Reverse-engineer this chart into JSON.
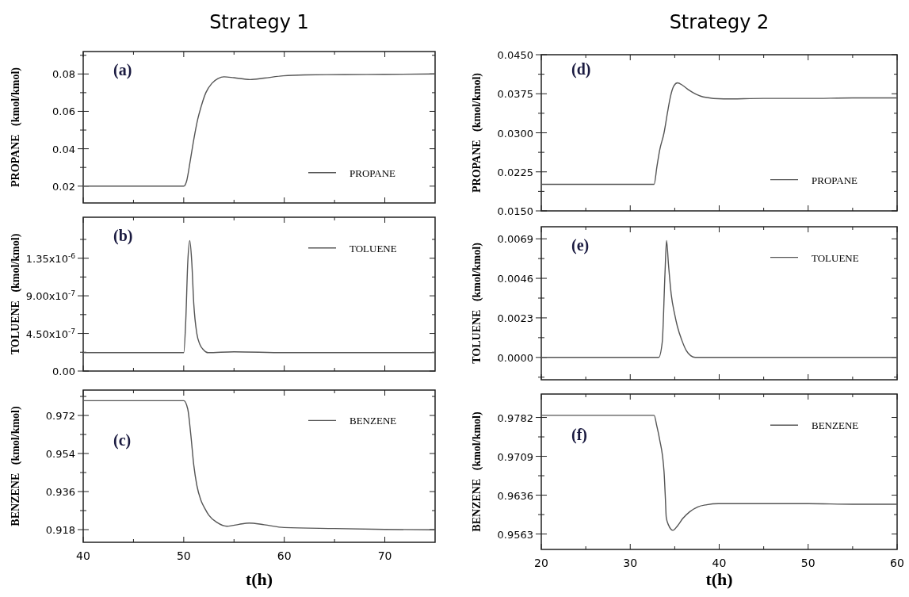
{
  "chart_data": [
    {
      "type": "line",
      "title": "Strategy 1",
      "ylabel": "PROPANE   (kmol/kmol)",
      "annotations": [
        "(a)"
      ],
      "legend": "bottom right",
      "tick_labels": "y",
      "xlim": [
        40,
        75
      ],
      "xticks": [
        40,
        {
          "value": 45,
          "label": null
        },
        50,
        {
          "value": 55,
          "label": null
        },
        60,
        {
          "value": 65,
          "label": null
        },
        70
      ],
      "ylim": [
        0.011,
        0.092
      ],
      "yticks": [
        {
          "value": 0.02,
          "label": "0.02"
        },
        {
          "value": 0.03,
          "label": null
        },
        {
          "value": 0.04,
          "label": "0.04"
        },
        {
          "value": 0.05,
          "label": null
        },
        {
          "value": 0.06,
          "label": "0.06"
        },
        {
          "value": 0.07,
          "label": null
        },
        {
          "value": 0.08,
          "label": "0.08"
        },
        {
          "value": 0.09,
          "label": null
        }
      ],
      "series": [
        {
          "name": "PROPANE",
          "color": "#555555",
          "x": [
            40,
            45,
            50,
            50.3,
            50.6,
            51,
            51.4,
            51.7,
            52.2,
            52.8,
            53.4,
            54,
            55,
            56.6,
            58,
            59.9,
            62,
            66,
            70,
            75
          ],
          "values": [
            0.02,
            0.02,
            0.02,
            0.023,
            0.032,
            0.045,
            0.056,
            0.062,
            0.07,
            0.075,
            0.0775,
            0.0785,
            0.078,
            0.077,
            0.0778,
            0.079,
            0.0795,
            0.0797,
            0.0798,
            0.08
          ]
        }
      ]
    },
    {
      "type": "line",
      "ylabel": "TOLUENE   (kmol/kmol)",
      "annotations": [
        "(b)"
      ],
      "legend": "top right",
      "tick_labels": "y",
      "xlim": [
        40,
        75
      ],
      "xticks": [
        40,
        {
          "value": 45,
          "label": null
        },
        50,
        {
          "value": 55,
          "label": null
        },
        60,
        {
          "value": 65,
          "label": null
        },
        70
      ],
      "ylim": [
        0,
        1.84e-06
      ],
      "yticks": [
        {
          "value": 0,
          "label": "0.00"
        },
        {
          "value": 2.25e-07,
          "label": null
        },
        {
          "value": 4.5e-07,
          "label": "4.50x10$^{-7}$"
        },
        {
          "value": 6.75e-07,
          "label": null
        },
        {
          "value": 9e-07,
          "label": "9.00x10$^{-7}$"
        },
        {
          "value": 1.125e-06,
          "label": null
        },
        {
          "value": 1.35e-06,
          "label": "1.35x10$^{-6}$"
        },
        {
          "value": 1.575e-06,
          "label": null
        }
      ],
      "series": [
        {
          "name": "TOLUENE",
          "color": "#555555",
          "x": [
            40,
            45,
            50,
            50.2,
            50.4,
            50.6,
            50.8,
            51,
            51.3,
            51.6,
            52,
            52.4,
            55,
            60,
            65,
            70,
            75
          ],
          "values": [
            2.2e-07,
            2.2e-07,
            2.2e-07,
            6e-07,
            1.3e-06,
            1.56e-06,
            1.3e-06,
            8e-07,
            4.5e-07,
            3.2e-07,
            2.5e-07,
            2.2e-07,
            2.3e-07,
            2.2e-07,
            2.2e-07,
            2.2e-07,
            2.2e-07
          ]
        }
      ]
    },
    {
      "type": "line",
      "ylabel": "BENZENE   (kmol/kmol)",
      "xlabel": "t(h)",
      "annotations": [
        "(c)"
      ],
      "legend": "top right",
      "xlim": [
        40,
        75
      ],
      "xticks": [
        40,
        {
          "value": 45,
          "label": null
        },
        50,
        {
          "value": 55,
          "label": null
        },
        60,
        {
          "value": 65,
          "label": null
        },
        70
      ],
      "ylim": [
        0.912,
        0.984
      ],
      "yticks": [
        {
          "value": 0.918,
          "label": "0.918"
        },
        {
          "value": 0.927,
          "label": null
        },
        {
          "value": 0.936,
          "label": "0.936"
        },
        {
          "value": 0.945,
          "label": null
        },
        {
          "value": 0.954,
          "label": "0.954"
        },
        {
          "value": 0.963,
          "label": null
        },
        {
          "value": 0.972,
          "label": "0.972"
        },
        {
          "value": 0.981,
          "label": null
        }
      ],
      "series": [
        {
          "name": "BENZENE",
          "color": "#555555",
          "x": [
            40,
            45,
            50,
            50.4,
            50.7,
            51,
            51.3,
            51.7,
            52.1,
            52.5,
            53.3,
            54.3,
            55.5,
            56.5,
            58,
            60,
            65,
            70,
            75
          ],
          "values": [
            0.979,
            0.979,
            0.979,
            0.975,
            0.963,
            0.9484,
            0.939,
            0.932,
            0.928,
            0.9248,
            0.9214,
            0.9196,
            0.9205,
            0.9211,
            0.9203,
            0.919,
            0.9185,
            0.9181,
            0.9179
          ]
        }
      ]
    },
    {
      "type": "line",
      "title": "Strategy 2",
      "ylabel": "PROPANE   (kmol/kmol)",
      "annotations": [
        "(d)"
      ],
      "legend": "bottom right",
      "tick_labels": "y",
      "xlim": [
        20,
        60
      ],
      "xticks": [
        20,
        {
          "value": 25,
          "label": null
        },
        30,
        {
          "value": 35,
          "label": null
        },
        40,
        {
          "value": 45,
          "label": null
        },
        50,
        {
          "value": 55,
          "label": null
        },
        60
      ],
      "ylim": [
        0.015,
        0.045
      ],
      "yticks": [
        {
          "value": 0.015,
          "label": "0.0150"
        },
        {
          "value": 0.01875,
          "label": null
        },
        {
          "value": 0.0225,
          "label": "0.0225"
        },
        {
          "value": 0.02625,
          "label": null
        },
        {
          "value": 0.03,
          "label": "0.0300"
        },
        {
          "value": 0.03375,
          "label": null
        },
        {
          "value": 0.0375,
          "label": "0.0375"
        },
        {
          "value": 0.04125,
          "label": null
        },
        {
          "value": 0.045,
          "label": "0.0450"
        }
      ],
      "series": [
        {
          "name": "PROPANE",
          "color": "#555555",
          "x": [
            20,
            25,
            30,
            32.68,
            33,
            33.3,
            33.8,
            34.2,
            34.5,
            34.9,
            35.3,
            35.9,
            36.6,
            37.4,
            38.2,
            40.5,
            45,
            50,
            55,
            60
          ],
          "values": [
            0.0201,
            0.0201,
            0.0201,
            0.0201,
            0.0235,
            0.0266,
            0.03,
            0.034,
            0.0368,
            0.039,
            0.0396,
            0.0391,
            0.0382,
            0.0374,
            0.0369,
            0.0365,
            0.0366,
            0.0366,
            0.0367,
            0.0367
          ]
        }
      ]
    },
    {
      "type": "line",
      "ylabel": "TOLUENE   (kmol/kmol)",
      "annotations": [
        "(e)"
      ],
      "legend": "top right",
      "tick_labels": "y",
      "xlim": [
        20,
        60
      ],
      "xticks": [
        20,
        {
          "value": 25,
          "label": null
        },
        30,
        {
          "value": 35,
          "label": null
        },
        40,
        {
          "value": 45,
          "label": null
        },
        50,
        {
          "value": 55,
          "label": null
        },
        60
      ],
      "ylim": [
        -0.0013,
        0.0076
      ],
      "yticks": [
        {
          "value": -0.00115,
          "label": null
        },
        {
          "value": 0,
          "label": "0.0000"
        },
        {
          "value": 0.00115,
          "label": null
        },
        {
          "value": 0.0023,
          "label": "0.0023"
        },
        {
          "value": 0.00345,
          "label": null
        },
        {
          "value": 0.0046,
          "label": "0.0046"
        },
        {
          "value": 0.00575,
          "label": null
        },
        {
          "value": 0.0069,
          "label": "0.0069"
        }
      ],
      "series": [
        {
          "name": "TOLUENE",
          "color": "#555555",
          "x": [
            20,
            25,
            30,
            33.2,
            33.6,
            33.9,
            34.08,
            34.3,
            34.6,
            35,
            35.3,
            35.8,
            36.3,
            36.8,
            37.3,
            40,
            45,
            50,
            55,
            60
          ],
          "values": [
            0,
            0,
            0,
            0,
            0.0009,
            0.0048,
            0.0068,
            0.0054,
            0.0037,
            0.0025,
            0.0018,
            0.001,
            0.0004,
            0.0001,
            0,
            0,
            0,
            0,
            0,
            0
          ]
        }
      ]
    },
    {
      "type": "line",
      "ylabel": "BENZENE   (kmol/kmol)",
      "xlabel": "t(h)",
      "annotations": [
        "(f)"
      ],
      "legend": "top right",
      "xlim": [
        20,
        60
      ],
      "xticks": [
        20,
        {
          "value": 25,
          "label": null
        },
        30,
        {
          "value": 35,
          "label": null
        },
        40,
        {
          "value": 45,
          "label": null
        },
        50,
        {
          "value": 55,
          "label": null
        },
        60
      ],
      "ylim": [
        0.9534,
        0.9826
      ],
      "yticks": [
        {
          "value": 0.9563,
          "label": "0.9563"
        },
        {
          "value": 0.95995,
          "label": null
        },
        {
          "value": 0.9636,
          "label": "0.9636"
        },
        {
          "value": 0.96725,
          "label": null
        },
        {
          "value": 0.9709,
          "label": "0.9709"
        },
        {
          "value": 0.97455,
          "label": null
        },
        {
          "value": 0.9782,
          "label": "0.9782"
        }
      ],
      "series": [
        {
          "name": "BENZENE",
          "color": "#555555",
          "x": [
            20,
            25,
            30,
            32.68,
            33,
            33.3,
            33.8,
            33.95,
            34.05,
            34.3,
            34.8,
            35.3,
            35.9,
            36.7,
            37.6,
            38.6,
            39.9,
            45,
            50,
            55,
            60
          ],
          "values": [
            0.9786,
            0.9786,
            0.9786,
            0.9786,
            0.9765,
            0.9741,
            0.968,
            0.963,
            0.9594,
            0.958,
            0.957,
            0.9578,
            0.9592,
            0.9605,
            0.9614,
            0.9618,
            0.962,
            0.962,
            0.962,
            0.9619,
            0.9619
          ]
        }
      ]
    }
  ]
}
